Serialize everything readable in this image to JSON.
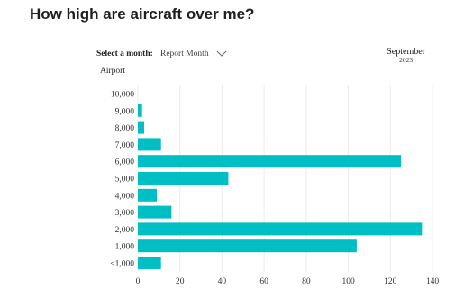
{
  "page": {
    "title": "How high are aircraft over me?"
  },
  "controls": {
    "month_label": "Select a month:",
    "month_select": {
      "value": "Report Month",
      "icon": "chevron-down-icon"
    }
  },
  "chart_header": {
    "month": "September",
    "year": "2023"
  },
  "chart_data": {
    "type": "bar",
    "orientation": "horizontal",
    "title": "",
    "ylabel": "Airport",
    "xlabel": "",
    "categories": [
      "10,000",
      "9,000",
      "8,000",
      "7,000",
      "6,000",
      "5,000",
      "4,000",
      "3,000",
      "2,000",
      "1,000",
      "<1,000"
    ],
    "values": [
      0,
      2,
      3,
      11,
      125,
      43,
      9,
      16,
      135,
      104,
      11
    ],
    "xlim": [
      0,
      140
    ],
    "xticks": [
      "0",
      "20",
      "40",
      "60",
      "80",
      "100",
      "120",
      "140"
    ],
    "grid": "vertical",
    "bar_color": "#00bfc4",
    "grid_color": "#ececec"
  }
}
